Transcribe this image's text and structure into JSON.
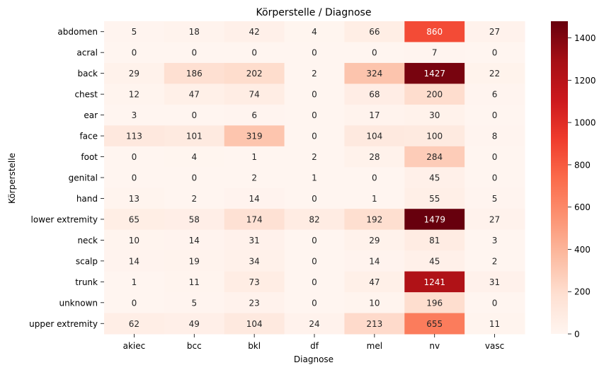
{
  "chart_data": {
    "type": "heatmap",
    "title": "Körperstelle / Diagnose",
    "xlabel": "Diagnose",
    "ylabel": "Körperstelle",
    "x_categories": [
      "akiec",
      "bcc",
      "bkl",
      "df",
      "mel",
      "nv",
      "vasc"
    ],
    "y_categories": [
      "abdomen",
      "acral",
      "back",
      "chest",
      "ear",
      "face",
      "foot",
      "genital",
      "hand",
      "lower extremity",
      "neck",
      "scalp",
      "trunk",
      "unknown",
      "upper extremity"
    ],
    "values": [
      [
        5,
        18,
        42,
        4,
        66,
        860,
        27
      ],
      [
        0,
        0,
        0,
        0,
        0,
        7,
        0
      ],
      [
        29,
        186,
        202,
        2,
        324,
        1427,
        22
      ],
      [
        12,
        47,
        74,
        0,
        68,
        200,
        6
      ],
      [
        3,
        0,
        6,
        0,
        17,
        30,
        0
      ],
      [
        113,
        101,
        319,
        0,
        104,
        100,
        8
      ],
      [
        0,
        4,
        1,
        2,
        28,
        284,
        0
      ],
      [
        0,
        0,
        2,
        1,
        0,
        45,
        0
      ],
      [
        13,
        2,
        14,
        0,
        1,
        55,
        5
      ],
      [
        65,
        58,
        174,
        82,
        192,
        1479,
        27
      ],
      [
        10,
        14,
        31,
        0,
        29,
        81,
        3
      ],
      [
        14,
        19,
        34,
        0,
        14,
        45,
        2
      ],
      [
        1,
        11,
        73,
        0,
        47,
        1241,
        31
      ],
      [
        0,
        5,
        23,
        0,
        10,
        196,
        0
      ],
      [
        62,
        49,
        104,
        24,
        213,
        655,
        11
      ]
    ],
    "colormap": "Reds",
    "vmin": 0,
    "vmax": 1479,
    "colorbar_ticks": [
      0,
      200,
      400,
      600,
      800,
      1000,
      1200,
      1400
    ],
    "colorbar_position": "right",
    "grid": false
  }
}
